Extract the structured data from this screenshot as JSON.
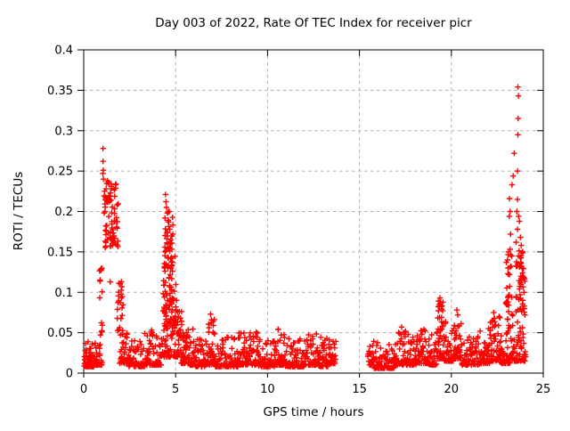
{
  "chart_data": {
    "type": "scatter",
    "title": "Day 003 of 2022, Rate Of TEC Index for receiver picr",
    "xlabel": "GPS time / hours",
    "ylabel": "ROTI / TECUs",
    "xlim": [
      0,
      25
    ],
    "ylim": [
      0,
      0.4
    ],
    "x_ticks": {
      "values": [
        0,
        5,
        10,
        15,
        20,
        25
      ],
      "labels": [
        "0",
        "5",
        "10",
        "15",
        "20",
        "25"
      ]
    },
    "y_ticks": {
      "values": [
        0,
        0.05,
        0.1,
        0.15,
        0.2,
        0.25,
        0.3,
        0.35,
        0.4
      ],
      "labels": [
        "0",
        "0.05",
        "0.1",
        "0.15",
        "0.2",
        "0.25",
        "0.3",
        "0.35",
        "0.4"
      ]
    },
    "grid": true,
    "legend": "none",
    "marker": "plus",
    "marker_color": "#ff0000",
    "grid_color": "#b0b0b0",
    "border_color": "#000000",
    "series_name": "ROTI",
    "data_gap_hours": [
      13.72,
      15.45
    ],
    "notable_points": [
      [
        1.05,
        0.278
      ],
      [
        1.05,
        0.262
      ],
      [
        1.06,
        0.251
      ],
      [
        1.04,
        0.247
      ],
      [
        1.07,
        0.24
      ],
      [
        1.3,
        0.238
      ],
      [
        1.35,
        0.236
      ],
      [
        0.92,
        0.128
      ],
      [
        1.44,
        0.113
      ],
      [
        2.05,
        0.113
      ],
      [
        2.08,
        0.107
      ],
      [
        2.1,
        0.095
      ],
      [
        2.48,
        0.029
      ],
      [
        2.49,
        0.018
      ],
      [
        4.45,
        0.221
      ],
      [
        4.47,
        0.212
      ],
      [
        4.5,
        0.205
      ],
      [
        4.55,
        0.198
      ],
      [
        4.42,
        0.192
      ],
      [
        4.62,
        0.187
      ],
      [
        4.68,
        0.178
      ],
      [
        4.85,
        0.172
      ],
      [
        6.9,
        0.073
      ],
      [
        6.95,
        0.066
      ],
      [
        7.05,
        0.059
      ],
      [
        19.38,
        0.093
      ],
      [
        19.42,
        0.088
      ],
      [
        19.35,
        0.083
      ],
      [
        19.47,
        0.079
      ],
      [
        20.3,
        0.078
      ],
      [
        20.35,
        0.072
      ],
      [
        22.3,
        0.075
      ],
      [
        22.35,
        0.068
      ],
      [
        23.62,
        0.354
      ],
      [
        23.65,
        0.343
      ],
      [
        23.63,
        0.315
      ],
      [
        23.62,
        0.295
      ],
      [
        23.42,
        0.272
      ],
      [
        23.6,
        0.25
      ],
      [
        23.36,
        0.244
      ],
      [
        23.3,
        0.233
      ],
      [
        23.16,
        0.216
      ],
      [
        23.6,
        0.215
      ],
      [
        23.2,
        0.2
      ],
      [
        23.56,
        0.2
      ],
      [
        23.66,
        0.194
      ],
      [
        23.15,
        0.194
      ],
      [
        23.7,
        0.188
      ],
      [
        23.6,
        0.178
      ],
      [
        23.22,
        0.172
      ],
      [
        23.76,
        0.168
      ],
      [
        23.52,
        0.162
      ],
      [
        23.8,
        0.158
      ],
      [
        23.1,
        0.15
      ],
      [
        23.05,
        0.14
      ],
      [
        23.08,
        0.13
      ],
      [
        23.85,
        0.13
      ],
      [
        23.9,
        0.12
      ],
      [
        23.95,
        0.1
      ],
      [
        23.1,
        0.095
      ],
      [
        23.88,
        0.09
      ],
      [
        23.08,
        0.088
      ],
      [
        23.12,
        0.084
      ],
      [
        24.0,
        0.072
      ],
      [
        23.05,
        0.067
      ],
      [
        23.6,
        0.063
      ]
    ],
    "noise_band_segments": [
      [
        0.02,
        0.55,
        0.008,
        0.042,
        60
      ],
      [
        0.55,
        1.0,
        0.01,
        0.045,
        35
      ],
      [
        1.95,
        2.4,
        0.012,
        0.05,
        30
      ],
      [
        2.4,
        3.3,
        0.008,
        0.04,
        55
      ],
      [
        3.3,
        3.85,
        0.01,
        0.055,
        40
      ],
      [
        3.85,
        4.25,
        0.01,
        0.048,
        28
      ],
      [
        4.25,
        5.3,
        0.02,
        0.06,
        55
      ],
      [
        5.3,
        5.6,
        0.012,
        0.065,
        28
      ],
      [
        5.6,
        6.0,
        0.01,
        0.06,
        30
      ],
      [
        6.0,
        6.75,
        0.008,
        0.042,
        50
      ],
      [
        6.75,
        7.15,
        0.01,
        0.07,
        35
      ],
      [
        7.15,
        8.4,
        0.008,
        0.045,
        80
      ],
      [
        8.4,
        8.85,
        0.01,
        0.05,
        32
      ],
      [
        8.85,
        9.5,
        0.01,
        0.052,
        45
      ],
      [
        9.5,
        10.4,
        0.008,
        0.042,
        60
      ],
      [
        10.4,
        10.95,
        0.01,
        0.056,
        40
      ],
      [
        10.95,
        12.0,
        0.008,
        0.045,
        70
      ],
      [
        12.0,
        12.7,
        0.01,
        0.05,
        48
      ],
      [
        12.7,
        13.3,
        0.008,
        0.045,
        42
      ],
      [
        13.3,
        13.72,
        0.012,
        0.052,
        30
      ],
      [
        15.45,
        15.8,
        0.01,
        0.048,
        22
      ],
      [
        15.8,
        16.9,
        0.006,
        0.038,
        70
      ],
      [
        16.9,
        17.6,
        0.01,
        0.058,
        50
      ],
      [
        17.6,
        18.2,
        0.01,
        0.05,
        42
      ],
      [
        18.2,
        18.75,
        0.012,
        0.055,
        40
      ],
      [
        18.75,
        19.2,
        0.01,
        0.05,
        32
      ],
      [
        19.2,
        19.6,
        0.018,
        0.085,
        40
      ],
      [
        19.6,
        20.1,
        0.015,
        0.065,
        38
      ],
      [
        20.1,
        20.55,
        0.018,
        0.07,
        38
      ],
      [
        20.55,
        21.55,
        0.01,
        0.048,
        68
      ],
      [
        21.55,
        22.1,
        0.012,
        0.055,
        40
      ],
      [
        22.1,
        22.65,
        0.015,
        0.072,
        45
      ],
      [
        22.65,
        23.2,
        0.012,
        0.055,
        40
      ],
      [
        23.2,
        24.05,
        0.015,
        0.06,
        58
      ]
    ],
    "spike_clusters": [
      [
        1.08,
        1.88,
        0.155,
        0.235,
        80,
        1.0
      ],
      [
        0.85,
        1.02,
        0.045,
        0.13,
        14,
        1.0
      ],
      [
        1.78,
        2.14,
        0.045,
        0.116,
        22,
        1.0
      ],
      [
        4.3,
        5.05,
        0.055,
        0.16,
        95,
        1.4
      ],
      [
        4.38,
        4.85,
        0.13,
        0.2,
        32,
        1.0
      ],
      [
        5.05,
        5.45,
        0.04,
        0.08,
        16,
        1.0
      ],
      [
        19.28,
        19.55,
        0.05,
        0.09,
        14,
        1.0
      ],
      [
        22.95,
        23.35,
        0.055,
        0.155,
        26,
        1.2
      ],
      [
        23.5,
        24.0,
        0.075,
        0.155,
        48,
        1.2
      ]
    ]
  }
}
